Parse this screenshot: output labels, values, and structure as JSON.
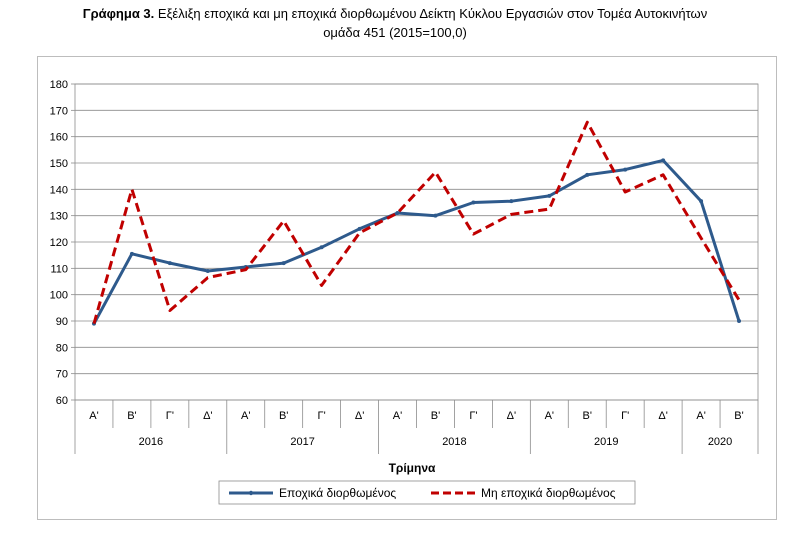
{
  "title": {
    "prefix": "Γράφημα 3.",
    "line1": "Εξέλιξη εποχικά και μη εποχικά διορθωμένου Δείκτη Κύκλου Εργασιών στον Τομέα Αυτοκινήτων",
    "line2": "ομάδα 451 (2015=100,0)"
  },
  "chart_data": {
    "type": "line",
    "xlabel": "Τρίμηνα",
    "ylabel": "",
    "ylim": [
      60,
      180
    ],
    "yticks": [
      60,
      70,
      80,
      90,
      100,
      110,
      120,
      130,
      140,
      150,
      160,
      170,
      180
    ],
    "grid": true,
    "legend": "bottom",
    "categories": [
      "Α'",
      "Β'",
      "Γ'",
      "Δ'",
      "Α'",
      "Β'",
      "Γ'",
      "Δ'",
      "Α'",
      "Β'",
      "Γ'",
      "Δ'",
      "Α'",
      "Β'",
      "Γ'",
      "Δ'",
      "Α'",
      "Β'"
    ],
    "years": [
      {
        "label": "2016",
        "count": 4
      },
      {
        "label": "2017",
        "count": 4
      },
      {
        "label": "2018",
        "count": 4
      },
      {
        "label": "2019",
        "count": 4
      },
      {
        "label": "2020",
        "count": 2
      }
    ],
    "series": [
      {
        "name": "Εποχικά διορθωμένος",
        "color": "#2e5a8c",
        "dash": "solid",
        "values": [
          89,
          115.5,
          112,
          109,
          110.5,
          112,
          118,
          125,
          131,
          130,
          135,
          135.5,
          137.5,
          145.5,
          147.5,
          151,
          135.5,
          90
        ]
      },
      {
        "name": "Μη εποχικά διορθωμένος",
        "color": "#c00000",
        "dash": "dashed",
        "values": [
          89,
          140,
          94,
          106.5,
          109.5,
          128,
          103.5,
          123.5,
          131,
          146.5,
          123,
          130.5,
          132.5,
          165.5,
          139,
          145.5,
          121.5,
          98
        ]
      }
    ]
  }
}
